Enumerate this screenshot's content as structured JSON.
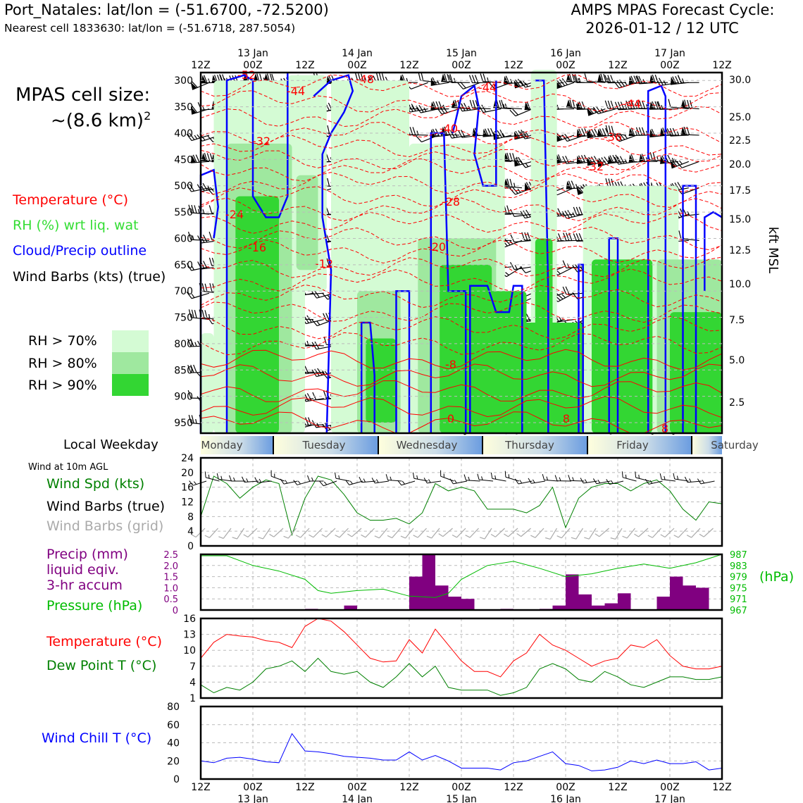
{
  "header": {
    "station_line": "Port_Natales: lat/lon = (-51.6700, -72.5200)",
    "cell_line": "Nearest cell 1833630: lat/lon = (-51.6718, 287.5054)",
    "cycle_line1": "AMPS MPAS Forecast Cycle:",
    "cycle_line2": "2026-01-12 / 12 UTC"
  },
  "cell_size": {
    "line1": "MPAS cell size:",
    "line2": "~(8.6 km)",
    "sup": "2"
  },
  "legend": {
    "temperature": "Temperature (°C)",
    "rh": "RH (%) wrt liq. wat",
    "cloud": "Cloud/Precip outline",
    "barbs": "Wind Barbs (kts) (true)",
    "rh70": "RH > 70%",
    "rh80": "RH > 80%",
    "rh90": "RH > 90%"
  },
  "colors": {
    "temperature": "#ff0000",
    "rh_text": "#33dd33",
    "cloud": "#0000ff",
    "rh70": "#d4fbd4",
    "rh80": "#9fe89f",
    "rh90": "#33d633",
    "wind_speed": "#008000",
    "dewpoint": "#008000",
    "precip": "#800080",
    "pressure": "#00bb00",
    "windchill": "#0000ff",
    "grid_barb": "#aaaaaa"
  },
  "time_axis": {
    "top_hours": [
      "12Z",
      "00Z",
      "12Z",
      "00Z",
      "12Z",
      "00Z",
      "12Z",
      "00Z",
      "12Z",
      "00Z",
      "12Z"
    ],
    "dates": [
      "13 Jan",
      "14 Jan",
      "15 Jan",
      "16 Jan",
      "17 Jan"
    ]
  },
  "weekday": {
    "label": "Local Weekday",
    "days": [
      "Monday",
      "Tuesday",
      "Wednesday",
      "Thursday",
      "Friday",
      "Saturday"
    ]
  },
  "wind10m": {
    "title": "Wind at 10m AGL",
    "speed_label": "Wind Spd (kts)",
    "barbs_true_label": "Wind Barbs (true)",
    "barbs_grid_label": "Wind Barbs (grid)"
  },
  "precip_panel": {
    "label1": "Precip (mm)",
    "label2": "liquid eqiv.",
    "label3": "3-hr accum",
    "pressure_label": "Pressure (hPa)",
    "hpa_label": "(hPa)"
  },
  "temp_panel": {
    "temp_label": "Temperature (°C)",
    "dew_label": "Dew Point T (°C)"
  },
  "chill_panel": {
    "label": "Wind Chill T (°C)"
  },
  "chart_data": [
    {
      "type": "line",
      "name": "time-height",
      "y_axis_left": "pressure (hPa)",
      "yticks_left": [
        300,
        350,
        400,
        450,
        500,
        550,
        600,
        650,
        700,
        750,
        800,
        850,
        900,
        950
      ],
      "ylabel_right": "kft MSL",
      "yticks_right": [
        "30.0",
        "25.0",
        "22.5",
        "20.0",
        "17.5",
        "15.0",
        "12.5",
        "10.0",
        "7.5",
        "5.0",
        "2.5"
      ],
      "temp_contour_labels": [
        "-52",
        "-48",
        "-44",
        "-44",
        "-44",
        "-40",
        "-36",
        "-32",
        "-32",
        "-28",
        "-24",
        "-20",
        "-16",
        "-12",
        "-8",
        "0",
        "8",
        "8",
        "8"
      ]
    },
    {
      "type": "line",
      "name": "wind-speed",
      "ylim": [
        0,
        24
      ],
      "yticks": [
        0,
        4,
        8,
        12,
        16,
        20,
        24
      ],
      "hours": [
        0,
        3,
        6,
        9,
        12,
        15,
        18,
        21,
        24,
        27,
        30,
        33,
        36,
        39,
        42,
        45,
        48,
        51,
        54,
        57,
        60,
        63,
        66,
        69,
        72,
        75,
        78,
        81,
        84,
        87,
        90,
        93,
        96,
        99,
        102,
        105,
        108,
        111,
        114,
        117,
        120
      ],
      "values": [
        8,
        19,
        17,
        13,
        16,
        18,
        17,
        3,
        13,
        19,
        18,
        14,
        9,
        7,
        7,
        7.5,
        6,
        9,
        17,
        15,
        16,
        15,
        10,
        10,
        10,
        9,
        11,
        16,
        5,
        13,
        16,
        17,
        17,
        15,
        17,
        18,
        15,
        10,
        7,
        12,
        11.5
      ]
    },
    {
      "type": "bar",
      "name": "precip",
      "ylim": [
        0,
        2.5
      ],
      "yticks": [
        "0",
        "0.5",
        "1.0",
        "1.5",
        "2.0",
        "2.5"
      ],
      "pressure_ticks": [
        "967",
        "971",
        "975",
        "979",
        "983",
        "987"
      ],
      "bar_hours": [
        24,
        33,
        48,
        51,
        54,
        57,
        60,
        69,
        78,
        81,
        84,
        87,
        90,
        93,
        96,
        105,
        108,
        111,
        114
      ],
      "bar_values": [
        0.05,
        0.2,
        1.5,
        2.5,
        1.1,
        0.6,
        0.5,
        0.05,
        0.05,
        0.2,
        1.6,
        0.7,
        0.2,
        0.3,
        0.75,
        0.6,
        1.5,
        1.1,
        1.0
      ],
      "pressure_hours": [
        0,
        6,
        12,
        18,
        24,
        27,
        30,
        36,
        42,
        48,
        54,
        57,
        60,
        66,
        72,
        78,
        84,
        90,
        96,
        102,
        108,
        114,
        120
      ],
      "pressure_values": [
        986.5,
        986.5,
        983,
        981,
        978,
        974,
        973,
        974,
        974.5,
        972,
        971.5,
        973,
        978,
        983,
        984.5,
        982,
        979,
        980,
        982,
        983.5,
        982,
        984,
        987
      ]
    },
    {
      "type": "line",
      "name": "temperature",
      "ylim": [
        1,
        16
      ],
      "yticks": [
        1,
        4,
        7,
        10,
        13,
        16
      ],
      "hours": [
        0,
        3,
        6,
        9,
        12,
        15,
        18,
        21,
        24,
        27,
        30,
        33,
        36,
        39,
        42,
        45,
        48,
        51,
        54,
        57,
        60,
        63,
        66,
        69,
        72,
        75,
        78,
        81,
        84,
        87,
        90,
        93,
        96,
        99,
        102,
        105,
        108,
        111,
        114,
        117,
        120
      ],
      "temperature": [
        8.5,
        11.5,
        13,
        12.7,
        12.5,
        11.8,
        11.5,
        10.5,
        14.5,
        16,
        15.5,
        13.5,
        11,
        8.5,
        7.8,
        8,
        12,
        9.5,
        14,
        11,
        8,
        6,
        6,
        5,
        8,
        9.5,
        13,
        11,
        10,
        8.5,
        7,
        8,
        8.5,
        11,
        10.5,
        12,
        9,
        7,
        6.5,
        6.5,
        7
      ],
      "dewpoint": [
        3.5,
        2,
        3,
        2.5,
        4,
        6.5,
        7,
        8,
        6,
        8.5,
        6,
        5.5,
        6,
        4,
        3,
        5,
        7.5,
        5,
        7,
        3,
        2.5,
        2.5,
        2.5,
        1.5,
        2,
        3,
        6.5,
        7.5,
        6.5,
        4.5,
        4,
        6,
        5,
        3.5,
        3,
        4,
        5,
        5,
        4.5,
        4.5,
        5
      ]
    },
    {
      "type": "line",
      "name": "wind-chill",
      "ylim": [
        0,
        80
      ],
      "yticks": [
        0,
        20,
        40,
        60,
        80
      ],
      "hours": [
        0,
        3,
        6,
        9,
        12,
        15,
        18,
        21,
        24,
        27,
        30,
        33,
        36,
        39,
        42,
        45,
        48,
        51,
        54,
        57,
        60,
        63,
        66,
        69,
        72,
        75,
        78,
        81,
        84,
        87,
        90,
        93,
        96,
        99,
        102,
        105,
        108,
        111,
        114,
        117,
        120
      ],
      "values": [
        20,
        18,
        23,
        24,
        22,
        19,
        18,
        50,
        31,
        30,
        28,
        25,
        24,
        23,
        21,
        21,
        30,
        21,
        26,
        20,
        12,
        12,
        12,
        10,
        18,
        20,
        25,
        30,
        17,
        15,
        9,
        10,
        13,
        20,
        17,
        21,
        17,
        17,
        19,
        10,
        12
      ]
    }
  ]
}
